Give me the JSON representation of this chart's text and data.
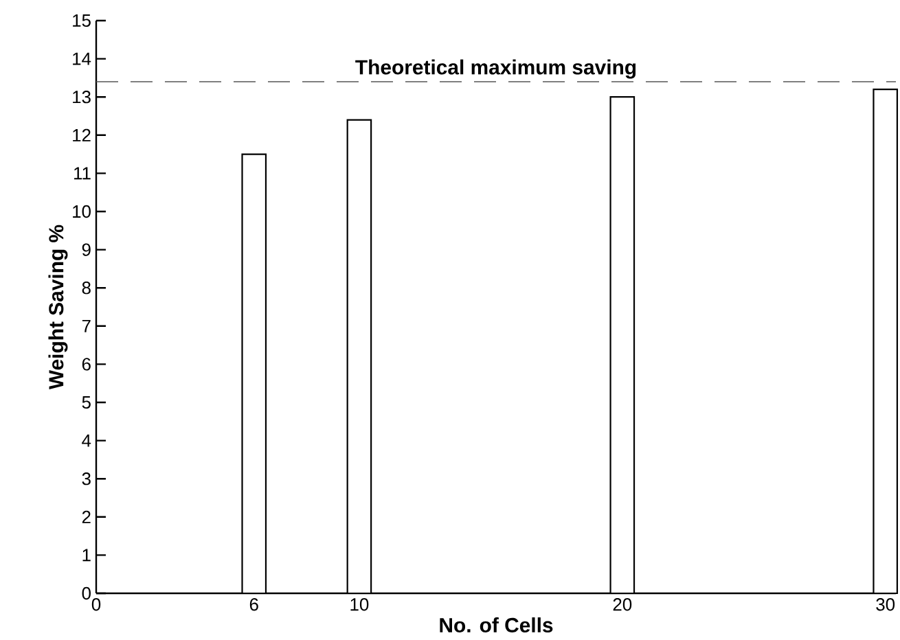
{
  "chart_data": {
    "type": "bar",
    "xlabel": "No. of Cells",
    "ylabel": "Weight Saving %",
    "x": [
      6,
      10,
      20,
      30
    ],
    "values": [
      11.5,
      12.4,
      13.0,
      13.2
    ],
    "color": "#ffffff",
    "xlim": [
      0,
      30.4
    ],
    "xticks": [
      0,
      6,
      10,
      20,
      30
    ],
    "ylim": [
      0,
      15
    ],
    "yticks": [
      0,
      1,
      2,
      3,
      4,
      5,
      6,
      7,
      8,
      9,
      10,
      11,
      12,
      13,
      14,
      15
    ],
    "ref_lines": [
      {
        "axis": "y",
        "value": 13.4,
        "label": "Theoretical maximum saving",
        "color": "#555555",
        "line_style": "dashed"
      }
    ],
    "grid": false
  }
}
